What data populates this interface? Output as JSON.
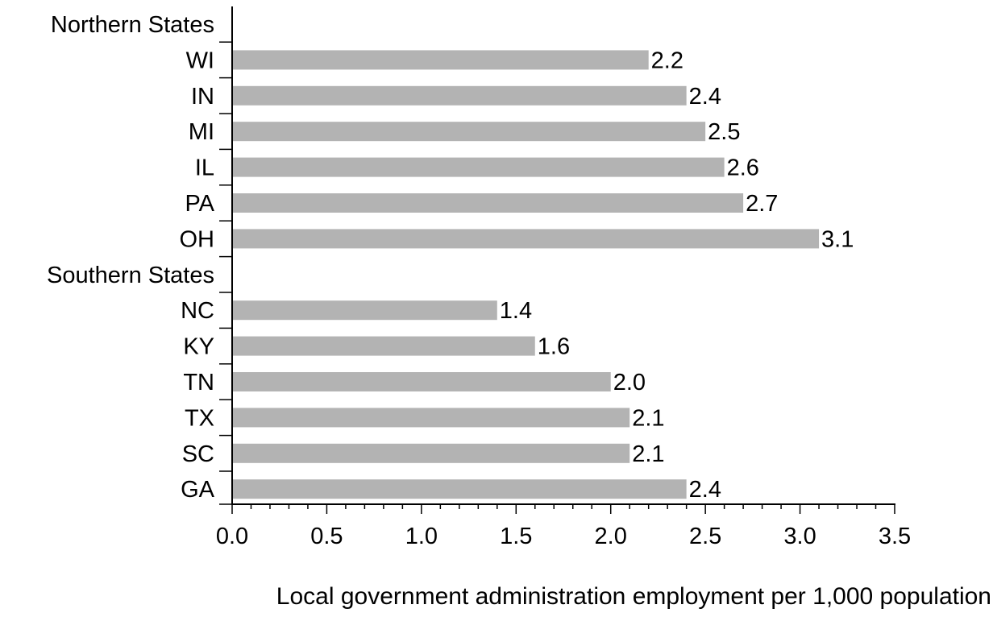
{
  "chart_data": {
    "type": "bar",
    "orientation": "horizontal",
    "groups": [
      {
        "name": "Northern States",
        "categories": [
          "WI",
          "IN",
          "MI",
          "IL",
          "PA",
          "OH"
        ],
        "values": [
          2.2,
          2.4,
          2.5,
          2.6,
          2.7,
          3.1
        ],
        "value_labels": [
          "2.2",
          "2.4",
          "2.5",
          "2.6",
          "2.7",
          "3.1"
        ]
      },
      {
        "name": "Southern States",
        "categories": [
          "NC",
          "KY",
          "TN",
          "TX",
          "SC",
          "GA"
        ],
        "values": [
          1.4,
          1.6,
          2.0,
          2.1,
          2.1,
          2.4
        ],
        "value_labels": [
          "1.4",
          "1.6",
          "2.0",
          "2.1",
          "2.1",
          "2.4"
        ]
      }
    ],
    "xlabel": "Local government administration employment per 1,000 population",
    "ylabel": "",
    "xlim": [
      0,
      3.5
    ],
    "xticks": [
      "0.0",
      "0.5",
      "1.0",
      "1.5",
      "2.0",
      "2.5",
      "3.0",
      "3.5"
    ],
    "bar_color": "#b3b3b3",
    "grid": false,
    "legend": "none"
  }
}
